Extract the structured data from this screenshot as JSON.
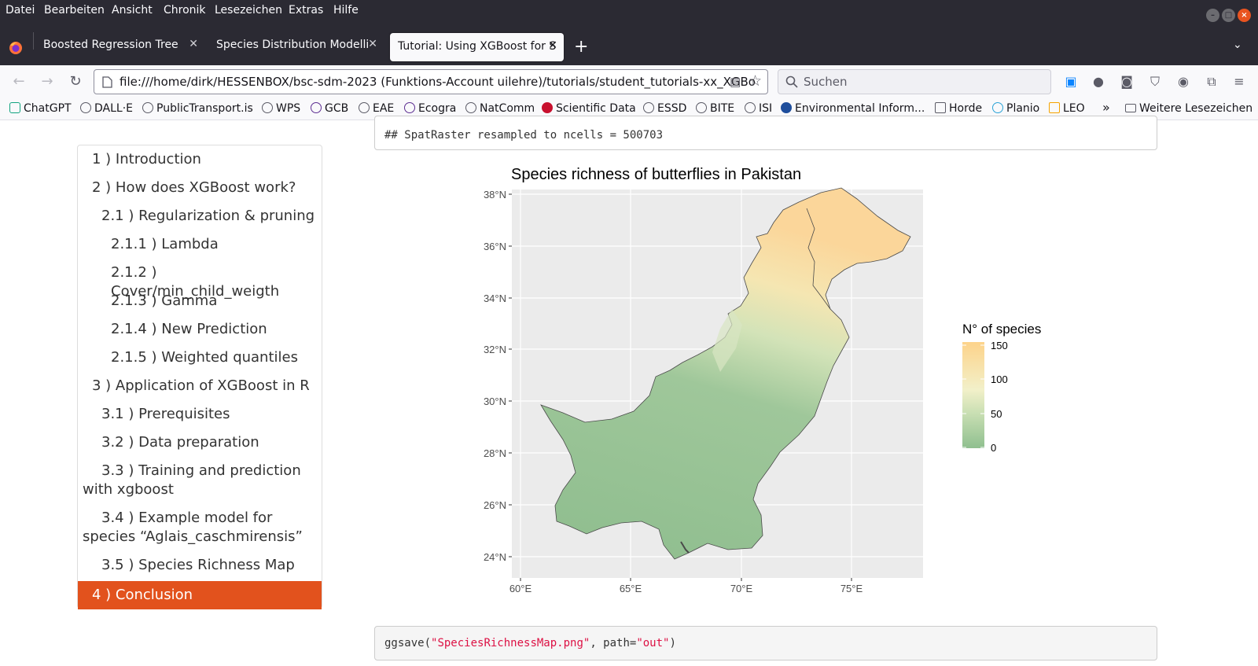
{
  "menubar": {
    "items": [
      "Datei",
      "Bearbeiten",
      "Ansicht",
      "Chronik",
      "Lesezeichen",
      "Extras",
      "Hilfe"
    ]
  },
  "tabs": [
    {
      "label": "Boosted Regression Tree",
      "active": false
    },
    {
      "label": "Species Distribution Modelli",
      "active": false
    },
    {
      "label": "Tutorial: Using XGBoost for S",
      "active": true
    }
  ],
  "navbar": {
    "url": "file:///home/dirk/HESSENBOX/bsc-sdm-2023 (Funktions-Account uilehre)/tutorials/student_tutorials-xx_XGBo",
    "search_placeholder": "Suchen"
  },
  "bookmarks": {
    "items": [
      "ChatGPT",
      "DALL·E",
      "PublicTransport.is",
      "WPS",
      "GCB",
      "EAE",
      "Ecogra",
      "NatComm",
      "Scientific Data",
      "ESSD",
      "BITE",
      "ISI",
      "Environmental Inform...",
      "Horde",
      "Planio",
      "LEO"
    ],
    "overflow": "»",
    "other": "Weitere Lesezeichen"
  },
  "toc": {
    "items": [
      {
        "label": "1 ) Introduction",
        "level": 1
      },
      {
        "label": "2 ) How does XGBoost work?",
        "level": 1
      },
      {
        "label": "2.1 ) Regularization & pruning",
        "level": 2
      },
      {
        "label": "2.1.1 ) Lambda",
        "level": 3
      },
      {
        "label": "2.1.2 ) Cover/min_child_weigth",
        "level": 3
      },
      {
        "label": "2.1.3 ) Gamma",
        "level": 3
      },
      {
        "label": "2.1.4 ) New Prediction",
        "level": 3
      },
      {
        "label": "2.1.5 ) Weighted quantiles",
        "level": 3
      },
      {
        "label": "3 ) Application of XGBoost in R",
        "level": 1
      },
      {
        "label": "3.1 ) Prerequisites",
        "level": 2
      },
      {
        "label": "3.2 ) Data preparation",
        "level": 2
      },
      {
        "label": "3.3 ) Training and prediction with xgboost",
        "level": 2
      },
      {
        "label": "3.4 ) Example model for species “Aglais_caschmirensis”",
        "level": 2
      },
      {
        "label": "3.5 ) Species Richness Map",
        "level": 2
      },
      {
        "label": "4 ) Conclusion",
        "level": 1,
        "active": true
      }
    ]
  },
  "code": {
    "output_text": "## SpatRaster resampled to ncells = 500703",
    "ggsave_fn": "ggsave(",
    "ggsave_arg1": "\"SpeciesRichnessMap.png\"",
    "ggsave_mid": ", path=",
    "ggsave_arg2": "\"out\"",
    "ggsave_end": ")"
  },
  "map": {
    "title": "Species richness of butterflies in Pakistan",
    "x_ticks": [
      "60°E",
      "65°E",
      "70°E",
      "75°E"
    ],
    "y_ticks": [
      "38°N",
      "36°N",
      "34°N",
      "32°N",
      "30°N",
      "28°N",
      "26°N",
      "24°N"
    ],
    "legend_title": "N° of species",
    "legend_ticks": [
      "150",
      "100",
      "50",
      "0"
    ],
    "colors": {
      "low": "#8fbf8f",
      "mid": "#f2f0c9",
      "high": "#fdd38a",
      "panel": "#ebebeb",
      "grid": "#ffffff"
    }
  },
  "colors": {
    "accent": "#e2521d",
    "chrome_dark": "#2b2a33",
    "chrome_light": "#f9f9fb"
  }
}
